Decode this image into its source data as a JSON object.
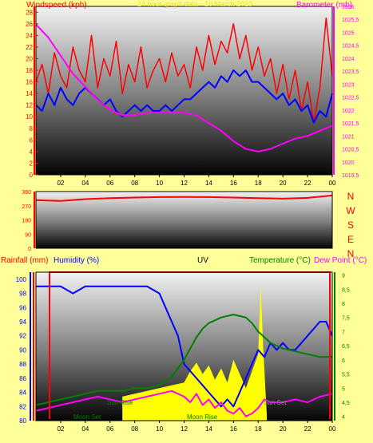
{
  "colors": {
    "background": "#ffff99",
    "windspeed": "#ff0000",
    "windspeed_avg": "#0000ff",
    "barometer": "#ff00ff",
    "direction": "#ff0000",
    "humidity": "#0000ff",
    "temperature": "#008000",
    "dew_point": "#ff00ff",
    "uv": "#000000",
    "rainfall": "#ff0000",
    "solar": "#ffff00",
    "title": "#ffff00"
  },
  "header": {
    "windspeed_label": "Windspeed (kph)",
    "barometer_label": "Barometer (mb)",
    "rainfall_label": "Rainfall (mm)",
    "humidity_label": "Humidity (%)",
    "uv_label": "UV",
    "temperature_label": "Temperature (°C)",
    "dewpoint_label": "Dew Point (°C)",
    "title": "24 hour graph data - 10 March 2023"
  },
  "chart_data": [
    {
      "type": "line",
      "ylabel": "Windspeed (kph)",
      "y2label": "Barometer (mb)",
      "x_ticks": [
        "02",
        "04",
        "06",
        "08",
        "10",
        "12",
        "14",
        "16",
        "18",
        "20",
        "22",
        "00"
      ],
      "x_range": [
        0,
        24
      ],
      "ylim": [
        0,
        29
      ],
      "y_ticks": [
        0,
        2,
        4,
        6,
        8,
        10,
        12,
        14,
        16,
        18,
        20,
        22,
        24,
        26,
        28
      ],
      "y2lim": [
        1019.5,
        1026
      ],
      "y2_ticks": [
        "1019,5",
        "1020",
        "1020,5",
        "1021",
        "1021,5",
        "1022",
        "1022,5",
        "1023",
        "1023,5",
        "1024",
        "1024,5",
        "1025",
        "1025,5",
        "1026"
      ],
      "y2_tick_values": [
        1019.5,
        1020,
        1020.5,
        1021,
        1021.5,
        1022,
        1022.5,
        1023,
        1023.5,
        1024,
        1024.5,
        1025,
        1025.5,
        1026
      ],
      "series": [
        {
          "axis": "left",
          "color": "#ff0000",
          "x": [
            0,
            0.5,
            1,
            1.5,
            2,
            2.5,
            3,
            3.5,
            4,
            4.5,
            5,
            5.5,
            6,
            6.5,
            7,
            7.5,
            8,
            8.5,
            9,
            9.5,
            10,
            10.5,
            11,
            11.5,
            12,
            12.5,
            13,
            13.5,
            14,
            14.5,
            15,
            15.5,
            16,
            16.5,
            17,
            17.5,
            18,
            18.5,
            19,
            19.5,
            20,
            20.5,
            21,
            21.5,
            22,
            22.5,
            23,
            23.5,
            24
          ],
          "values": [
            16,
            19,
            14,
            21,
            17,
            15,
            22,
            18,
            16,
            24,
            15,
            20,
            17,
            23,
            14,
            19,
            16,
            22,
            15,
            18,
            20,
            16,
            21,
            17,
            19,
            15,
            22,
            18,
            24,
            19,
            23,
            21,
            26,
            20,
            24,
            18,
            22,
            17,
            20,
            14,
            19,
            13,
            18,
            11,
            16,
            9,
            15,
            27,
            17
          ]
        },
        {
          "axis": "left",
          "color": "#0000ff",
          "x": [
            0,
            0.5,
            1,
            1.5,
            2,
            2.5,
            3,
            3.5,
            4,
            4.5,
            5,
            5.5,
            6,
            6.5,
            7,
            7.5,
            8,
            8.5,
            9,
            9.5,
            10,
            10.5,
            11,
            11.5,
            12,
            12.5,
            13,
            13.5,
            14,
            14.5,
            15,
            15.5,
            16,
            16.5,
            17,
            17.5,
            18,
            18.5,
            19,
            19.5,
            20,
            20.5,
            21,
            21.5,
            22,
            22.5,
            23,
            23.5,
            24
          ],
          "values": [
            12,
            11,
            14,
            12,
            15,
            13,
            12,
            14,
            15,
            14,
            13,
            12,
            13,
            11,
            10,
            11,
            12,
            11,
            12,
            11,
            11,
            12,
            11,
            12,
            13,
            13,
            14,
            15,
            16,
            15,
            17,
            16,
            18,
            17,
            18,
            16,
            16,
            15,
            14,
            13,
            14,
            12,
            13,
            11,
            12,
            9,
            11,
            10,
            14
          ]
        },
        {
          "axis": "right",
          "color": "#ff00ff",
          "x": [
            0,
            1,
            2,
            3,
            4,
            5,
            6,
            7,
            8,
            9,
            10,
            11,
            12,
            13,
            14,
            15,
            16,
            17,
            18,
            19,
            20,
            21,
            22,
            23,
            24
          ],
          "values": [
            1025.3,
            1024.8,
            1024.1,
            1023.4,
            1022.9,
            1022.4,
            1022.0,
            1021.8,
            1021.8,
            1021.9,
            1021.9,
            1021.9,
            1021.9,
            1021.8,
            1021.5,
            1021.2,
            1020.8,
            1020.5,
            1020.4,
            1020.5,
            1020.7,
            1020.9,
            1021.0,
            1021.2,
            1021.4
          ]
        }
      ]
    },
    {
      "type": "line",
      "x_range": [
        0,
        24
      ],
      "ylim": [
        0,
        360
      ],
      "y_ticks": [
        0,
        90,
        180,
        270,
        360
      ],
      "direction_labels": [
        "N",
        "W",
        "S",
        "E",
        "N"
      ],
      "series": [
        {
          "color": "#ff0000",
          "x": [
            0,
            2,
            4,
            6,
            8,
            10,
            12,
            14,
            16,
            18,
            20,
            22,
            24
          ],
          "values": [
            305,
            300,
            312,
            318,
            322,
            325,
            326,
            325,
            322,
            318,
            315,
            320,
            335
          ]
        }
      ]
    },
    {
      "type": "line",
      "ylabel": "Humidity (%)",
      "y2label": "Temperature (°C)",
      "x_ticks": [
        "02",
        "04",
        "06",
        "08",
        "10",
        "12",
        "14",
        "16",
        "18",
        "20",
        "22",
        "00"
      ],
      "x_range": [
        0,
        24
      ],
      "ylim": [
        80,
        101
      ],
      "y_ticks": [
        80,
        82,
        84,
        86,
        88,
        90,
        92,
        94,
        96,
        98,
        100
      ],
      "y2lim": [
        3.85,
        9.1
      ],
      "y2_ticks": [
        "4",
        "4,5",
        "5",
        "5,5",
        "6",
        "6,5",
        "7",
        "7,5",
        "8",
        "8,5",
        "9"
      ],
      "y2_tick_values": [
        4,
        4.5,
        5,
        5.5,
        6,
        6.5,
        7,
        7.5,
        8,
        8.5,
        9
      ],
      "annotations": [
        "Sun Rise",
        "Moon Set",
        "Sun Set",
        "Moon Rise"
      ],
      "series": [
        {
          "axis": "left",
          "color": "#0000ff",
          "x": [
            0,
            1,
            2,
            3,
            4,
            5,
            6,
            7,
            8,
            9,
            10,
            10.5,
            11,
            11.5,
            12,
            12.5,
            13,
            13.5,
            14,
            14.5,
            15,
            15.5,
            16,
            16.5,
            17,
            17.5,
            18,
            18.5,
            19,
            19.5,
            20,
            20.5,
            21,
            21.5,
            22,
            22.5,
            23,
            23.5,
            24
          ],
          "values": [
            99,
            99,
            99,
            98,
            99,
            99,
            99,
            99,
            99,
            99,
            98,
            96,
            94,
            92,
            88,
            87,
            86,
            85,
            84,
            83,
            82,
            83,
            82,
            84,
            86,
            88,
            90,
            89,
            91,
            90,
            91,
            90,
            90,
            91,
            92,
            93,
            94,
            94,
            92
          ]
        },
        {
          "axis": "right",
          "color": "#008000",
          "x": [
            0,
            1,
            2,
            3,
            4,
            5,
            6,
            7,
            8,
            9,
            10,
            11,
            12,
            12.5,
            13,
            13.5,
            14,
            15,
            16,
            17,
            17.5,
            18,
            19,
            20,
            21,
            22,
            23,
            24
          ],
          "values": [
            4.4,
            4.5,
            4.6,
            4.7,
            4.8,
            4.9,
            4.9,
            4.9,
            5.0,
            5.0,
            5.1,
            5.4,
            6.0,
            6.4,
            6.8,
            7.1,
            7.3,
            7.5,
            7.6,
            7.5,
            7.3,
            7.0,
            6.6,
            6.4,
            6.3,
            6.2,
            6.1,
            6.1
          ]
        },
        {
          "axis": "right",
          "color": "#ff00ff",
          "x": [
            0,
            1,
            2,
            3,
            4,
            5,
            6,
            7,
            8,
            9,
            10,
            11,
            12,
            12.5,
            13,
            13.5,
            14,
            14.5,
            15,
            15.5,
            16,
            16.5,
            17,
            17.5,
            18,
            18.5,
            19,
            20,
            21,
            22,
            23,
            24
          ],
          "values": [
            4.2,
            4.3,
            4.4,
            4.5,
            4.6,
            4.7,
            4.6,
            4.5,
            4.6,
            4.7,
            4.8,
            4.9,
            4.7,
            4.5,
            4.8,
            4.4,
            4.6,
            4.3,
            4.5,
            4.2,
            4.1,
            4.3,
            4.0,
            4.1,
            4.3,
            4.6,
            4.5,
            4.5,
            4.6,
            4.5,
            4.7,
            4.8
          ]
        },
        {
          "axis": "right",
          "color": "#ffff00",
          "x": [
            7,
            8,
            9,
            10,
            11,
            12,
            12.5,
            13,
            13.5,
            14,
            14.5,
            15,
            15.5,
            16,
            16.5,
            17,
            17.5,
            18,
            18.2,
            18.4,
            18.7
          ],
          "values": [
            4.7,
            4.8,
            4.9,
            5.0,
            5.1,
            5.2,
            5.6,
            5.9,
            5.5,
            5.8,
            5.3,
            5.7,
            5.2,
            6.0,
            5.5,
            5.0,
            5.6,
            6.2,
            8.7,
            6.5,
            4.0
          ]
        }
      ]
    }
  ]
}
